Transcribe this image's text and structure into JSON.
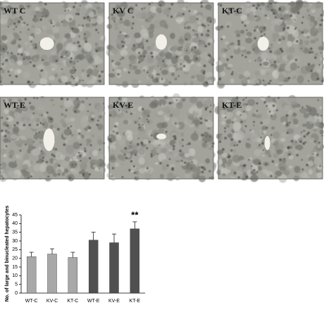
{
  "panels": [
    {
      "label": "WT C"
    },
    {
      "label": "KV C"
    },
    {
      "label": "KT-C"
    },
    {
      "label": "WT-E"
    },
    {
      "label": "KV-E"
    },
    {
      "label": "KT-E"
    }
  ],
  "chart_data": {
    "type": "bar",
    "y_label": "No. of large and binucleated hepatocytes",
    "categories": [
      "WT-C",
      "KV-C",
      "KT-C",
      "WT-E",
      "KV-E",
      "KT-E"
    ],
    "values": [
      21,
      22.5,
      20.5,
      30.5,
      29,
      37
    ],
    "errors": [
      2.5,
      3,
      3,
      4.5,
      5,
      4
    ],
    "colors": [
      "#a8a8a8",
      "#a8a8a8",
      "#a8a8a8",
      "#505050",
      "#505050",
      "#505050"
    ],
    "annotation": "**",
    "ylim": [
      0,
      45
    ],
    "yticks": [
      0,
      5,
      10,
      15,
      20,
      25,
      30,
      35,
      40,
      45
    ]
  }
}
